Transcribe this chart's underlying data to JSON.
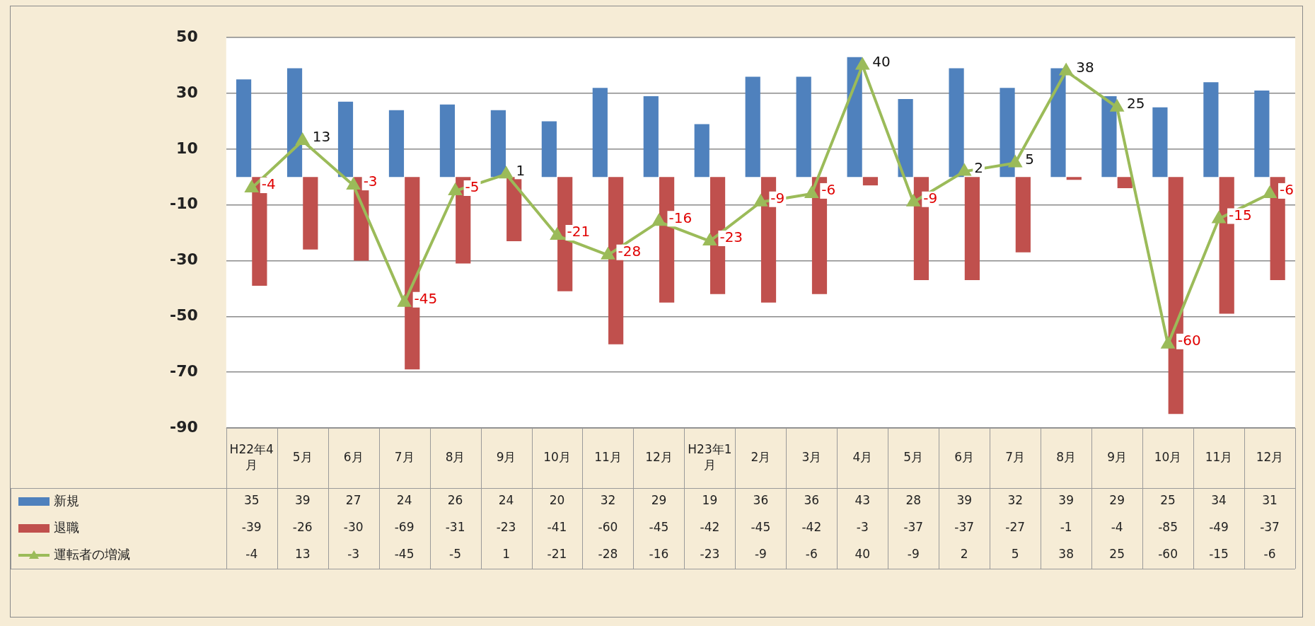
{
  "chart_data": {
    "type": "bar",
    "categories": [
      "H22年4月",
      "5月",
      "6月",
      "7月",
      "8月",
      "9月",
      "10月",
      "11月",
      "12月",
      "H23年1月",
      "2月",
      "3月",
      "4月",
      "5月",
      "6月",
      "7月",
      "8月",
      "9月",
      "10月",
      "11月",
      "12月"
    ],
    "series": [
      {
        "name": "新規",
        "color": "#4f81bd",
        "values": [
          35,
          39,
          27,
          24,
          26,
          24,
          20,
          32,
          29,
          19,
          36,
          36,
          43,
          28,
          39,
          32,
          39,
          29,
          25,
          34,
          31
        ]
      },
      {
        "name": "退職",
        "color": "#c0504d",
        "values": [
          -39,
          -26,
          -30,
          -69,
          -31,
          -23,
          -41,
          -60,
          -45,
          -42,
          -45,
          -42,
          -3,
          -37,
          -37,
          -27,
          -1,
          -4,
          -85,
          -49,
          -37
        ]
      },
      {
        "name": "運転者の増減",
        "type": "line",
        "color": "#9bbb59",
        "marker": "triangle",
        "values": [
          -4,
          13,
          -3,
          -45,
          -5,
          1,
          -21,
          -28,
          -16,
          -23,
          -9,
          -6,
          40,
          -9,
          2,
          5,
          38,
          25,
          -60,
          -15,
          -6
        ]
      }
    ],
    "ylim": [
      -90,
      50
    ],
    "yticks": [
      -90,
      -70,
      -50,
      -30,
      -10,
      10,
      30,
      50
    ],
    "grid": "y",
    "legend": "bottom left",
    "data_labels": true,
    "annotations": [
      "-4",
      "13",
      "-3",
      "-45",
      "-5",
      "1",
      "-21",
      "-28",
      "-16",
      "-23",
      "-9",
      "-6",
      "40",
      "-9",
      "2",
      "5",
      "38",
      "25",
      "-60",
      "-15",
      "-6"
    ]
  }
}
